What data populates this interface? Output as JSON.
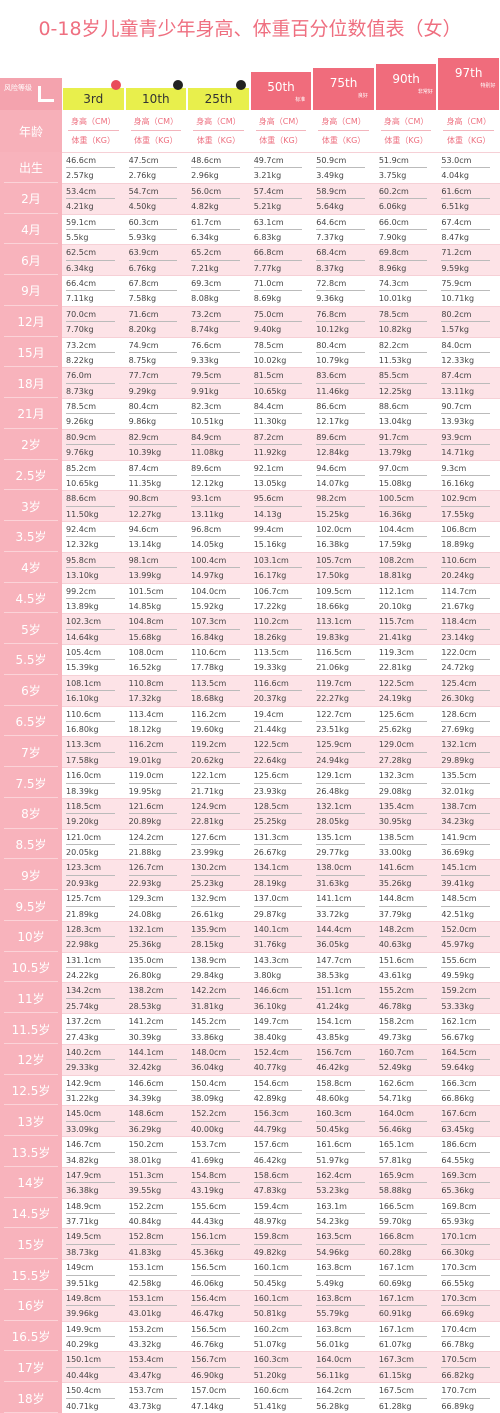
{
  "title": "0-18岁儿童青少年身高、体重百分位数值表（女）",
  "header": {
    "risk_label": "风险等级",
    "columns": [
      {
        "label": "3rd"
      },
      {
        "label": "10th"
      },
      {
        "label": "25th"
      },
      {
        "label": "50th",
        "badge": "标准"
      },
      {
        "label": "75th",
        "badge": "良好"
      },
      {
        "label": "90th",
        "badge": "非常好"
      },
      {
        "label": "97th",
        "badge": "特别好"
      }
    ]
  },
  "table": {
    "age_header": "年龄",
    "height_header": "身高（CM）",
    "weight_header": "体重（KG）",
    "rows": [
      {
        "age": "出生",
        "height": [
          "46.6cm",
          "47.5cm",
          "48.6cm",
          "49.7cm",
          "50.9cm",
          "51.9cm",
          "53.0cm"
        ],
        "weight": [
          "2.57kg",
          "2.76kg",
          "2.96kg",
          "3.21kg",
          "3.49kg",
          "3.75kg",
          "4.04kg"
        ]
      },
      {
        "age": "2月",
        "height": [
          "53.4cm",
          "54.7cm",
          "56.0cm",
          "57.4cm",
          "58.9cm",
          "60.2cm",
          "61.6cm"
        ],
        "weight": [
          "4.21kg",
          "4.50kg",
          "4.82kg",
          "5.21kg",
          "5.64kg",
          "6.06kg",
          "6.51kg"
        ]
      },
      {
        "age": "4月",
        "height": [
          "59.1cm",
          "60.3cm",
          "61.7cm",
          "63.1cm",
          "64.6cm",
          "66.0cm",
          "67.4cm"
        ],
        "weight": [
          "5.5kg",
          "5.93kg",
          "6.34kg",
          "6.83kg",
          "7.37kg",
          "7.90kg",
          "8.47kg"
        ]
      },
      {
        "age": "6月",
        "height": [
          "62.5cm",
          "63.9cm",
          "65.2cm",
          "66.8cm",
          "68.4cm",
          "69.8cm",
          "71.2cm"
        ],
        "weight": [
          "6.34kg",
          "6.76kg",
          "7.21kg",
          "7.77kg",
          "8.37kg",
          "8.96kg",
          "9.59kg"
        ]
      },
      {
        "age": "9月",
        "height": [
          "66.4cm",
          "67.8cm",
          "69.3cm",
          "71.0cm",
          "72.8cm",
          "74.3cm",
          "75.9cm"
        ],
        "weight": [
          "7.11kg",
          "7.58kg",
          "8.08kg",
          "8.69kg",
          "9.36kg",
          "10.01kg",
          "10.71kg"
        ]
      },
      {
        "age": "12月",
        "height": [
          "70.0cm",
          "71.6cm",
          "73.2cm",
          "75.0cm",
          "76.8cm",
          "78.5cm",
          "80.2cm"
        ],
        "weight": [
          "7.70kg",
          "8.20kg",
          "8.74kg",
          "9.40kg",
          "10.12kg",
          "10.82kg",
          "1.57kg"
        ]
      },
      {
        "age": "15月",
        "height": [
          "73.2cm",
          "74.9cm",
          "76.6cm",
          "78.5cm",
          "80.4cm",
          "82.2cm",
          "84.0cm"
        ],
        "weight": [
          "8.22kg",
          "8.75kg",
          "9.33kg",
          "10.02kg",
          "10.79kg",
          "11.53kg",
          "12.33kg"
        ]
      },
      {
        "age": "18月",
        "height": [
          "76.0m",
          "77.7cm",
          "79.5cm",
          "81.5cm",
          "83.6cm",
          "85.5cm",
          "87.4cm"
        ],
        "weight": [
          "8.73kg",
          "9.29kg",
          "9.91kg",
          "10.65kg",
          "11.46kg",
          "12.25kg",
          "13.11kg"
        ]
      },
      {
        "age": "21月",
        "height": [
          "78.5cm",
          "80.4cm",
          "82.3cm",
          "84.4cm",
          "86.6cm",
          "88.6cm",
          "90.7cm"
        ],
        "weight": [
          "9.26kg",
          "9.86kg",
          "10.51kg",
          "11.30kg",
          "12.17kg",
          "13.04kg",
          "13.93kg"
        ]
      },
      {
        "age": "2岁",
        "height": [
          "80.9cm",
          "82.9cm",
          "84.9cm",
          "87.2cm",
          "89.6cm",
          "91.7cm",
          "93.9cm"
        ],
        "weight": [
          "9.76kg",
          "10.39kg",
          "11.08kg",
          "11.92kg",
          "12.84kg",
          "13.79kg",
          "14.71kg"
        ]
      },
      {
        "age": "2.5岁",
        "height": [
          "85.2cm",
          "87.4cm",
          "89.6cm",
          "92.1cm",
          "94.6cm",
          "97.0cm",
          "9.3cm"
        ],
        "weight": [
          "10.65kg",
          "11.35kg",
          "12.12kg",
          "13.05kg",
          "14.07kg",
          "15.08kg",
          "16.16kg"
        ]
      },
      {
        "age": "3岁",
        "height": [
          "88.6cm",
          "90.8cm",
          "93.1cm",
          "95.6cm",
          "98.2cm",
          "100.5cm",
          "102.9cm"
        ],
        "weight": [
          "11.50kg",
          "12.27kg",
          "13.11kg",
          "14.13g",
          "15.25kg",
          "16.36kg",
          "17.55kg"
        ]
      },
      {
        "age": "3.5岁",
        "height": [
          "92.4cm",
          "94.6cm",
          "96.8cm",
          "99.4cm",
          "102.0cm",
          "104.4cm",
          "106.8cm"
        ],
        "weight": [
          "12.32kg",
          "13.14kg",
          "14.05kg",
          "15.16kg",
          "16.38kg",
          "17.59kg",
          "18.89kg"
        ]
      },
      {
        "age": "4岁",
        "height": [
          "95.8cm",
          "98.1cm",
          "100.4cm",
          "103.1cm",
          "105.7cm",
          "108.2cm",
          "110.6cm"
        ],
        "weight": [
          "13.10kg",
          "13.99kg",
          "14.97kg",
          "16.17kg",
          "17.50kg",
          "18.81kg",
          "20.24kg"
        ]
      },
      {
        "age": "4.5岁",
        "height": [
          "99.2cm",
          "101.5cm",
          "104.0cm",
          "106.7cm",
          "109.5cm",
          "112.1cm",
          "114.7cm"
        ],
        "weight": [
          "13.89kg",
          "14.85kg",
          "15.92kg",
          "17.22kg",
          "18.66kg",
          "20.10kg",
          "21.67kg"
        ]
      },
      {
        "age": "5岁",
        "height": [
          "102.3cm",
          "104.8cm",
          "107.3cm",
          "110.2cm",
          "113.1cm",
          "115.7cm",
          "118.4cm"
        ],
        "weight": [
          "14.64kg",
          "15.68kg",
          "16.84kg",
          "18.26kg",
          "19.83kg",
          "21.41kg",
          "23.14kg"
        ]
      },
      {
        "age": "5.5岁",
        "height": [
          "105.4cm",
          "108.0cm",
          "110.6cm",
          "113.5cm",
          "116.5cm",
          "119.3cm",
          "122.0cm"
        ],
        "weight": [
          "15.39kg",
          "16.52kg",
          "17.78kg",
          "19.33kg",
          "21.06kg",
          "22.81kg",
          "24.72kg"
        ]
      },
      {
        "age": "6岁",
        "height": [
          "108.1cm",
          "110.8cm",
          "113.5cm",
          "116.6cm",
          "119.7cm",
          "122.5cm",
          "125.4cm"
        ],
        "weight": [
          "16.10kg",
          "17.32kg",
          "18.68kg",
          "20.37kg",
          "22.27kg",
          "24.19kg",
          "26.30kg"
        ]
      },
      {
        "age": "6.5岁",
        "height": [
          "110.6cm",
          "113.4cm",
          "116.2cm",
          "19.4cm",
          "122.7cm",
          "125.6cm",
          "128.6cm"
        ],
        "weight": [
          "16.80kg",
          "18.12kg",
          "19.60kg",
          "21.44kg",
          "23.51kg",
          "25.62kg",
          "27.69kg"
        ]
      },
      {
        "age": "7岁",
        "height": [
          "113.3cm",
          "116.2cm",
          "119.2cm",
          "122.5cm",
          "125.9cm",
          "129.0cm",
          "132.1cm"
        ],
        "weight": [
          "17.58kg",
          "19.01kg",
          "20.62kg",
          "22.64kg",
          "24.94kg",
          "27.28kg",
          "29.89kg"
        ]
      },
      {
        "age": "7.5岁",
        "height": [
          "116.0cm",
          "119.0cm",
          "122.1cm",
          "125.6cm",
          "129.1cm",
          "132.3cm",
          "135.5cm"
        ],
        "weight": [
          "18.39kg",
          "19.95kg",
          "21.71kg",
          "23.93kg",
          "26.48kg",
          "29.08kg",
          "32.01kg"
        ]
      },
      {
        "age": "8岁",
        "height": [
          "118.5cm",
          "121.6cm",
          "124.9cm",
          "128.5cm",
          "132.1cm",
          "135.4cm",
          "138.7cm"
        ],
        "weight": [
          "19.20kg",
          "20.89kg",
          "22.81kg",
          "25.25kg",
          "28.05kg",
          "30.95kg",
          "34.23kg"
        ]
      },
      {
        "age": "8.5岁",
        "height": [
          "121.0cm",
          "124.2cm",
          "127.6cm",
          "131.3cm",
          "135.1cm",
          "138.5cm",
          "141.9cm"
        ],
        "weight": [
          "20.05kg",
          "21.88kg",
          "23.99kg",
          "26.67kg",
          "29.77kg",
          "33.00kg",
          "36.69kg"
        ]
      },
      {
        "age": "9岁",
        "height": [
          "123.3cm",
          "126.7cm",
          "130.2cm",
          "134.1cm",
          "138.0cm",
          "141.6cm",
          "145.1cm"
        ],
        "weight": [
          "20.93kg",
          "22.93kg",
          "25.23kg",
          "28.19kg",
          "31.63kg",
          "35.26kg",
          "39.41kg"
        ]
      },
      {
        "age": "9.5岁",
        "height": [
          "125.7cm",
          "129.3cm",
          "132.9cm",
          "137.0cm",
          "141.1cm",
          "144.8cm",
          "148.5cm"
        ],
        "weight": [
          "21.89kg",
          "24.08kg",
          "26.61kg",
          "29.87kg",
          "33.72kg",
          "37.79kg",
          "42.51kg"
        ]
      },
      {
        "age": "10岁",
        "height": [
          "128.3cm",
          "132.1cm",
          "135.9cm",
          "140.1cm",
          "144.4cm",
          "148.2cm",
          "152.0cm"
        ],
        "weight": [
          "22.98kg",
          "25.36kg",
          "28.15kg",
          "31.76kg",
          "36.05kg",
          "40.63kg",
          "45.97kg"
        ]
      },
      {
        "age": "10.5岁",
        "height": [
          "131.1cm",
          "135.0cm",
          "138.9cm",
          "143.3cm",
          "147.7cm",
          "151.6cm",
          "155.6cm"
        ],
        "weight": [
          "24.22kg",
          "26.80kg",
          "29.84kg",
          "3.80kg",
          "38.53kg",
          "43.61kg",
          "49.59kg"
        ]
      },
      {
        "age": "11岁",
        "height": [
          "134.2cm",
          "138.2cm",
          "142.2cm",
          "146.6cm",
          "151.1cm",
          "155.2cm",
          "159.2cm"
        ],
        "weight": [
          "25.74kg",
          "28.53kg",
          "31.81kg",
          "36.10kg",
          "41.24kg",
          "46.78kg",
          "53.33kg"
        ]
      },
      {
        "age": "11.5岁",
        "height": [
          "137.2cm",
          "141.2cm",
          "145.2cm",
          "149.7cm",
          "154.1cm",
          "158.2cm",
          "162.1cm"
        ],
        "weight": [
          "27.43kg",
          "30.39kg",
          "33.86kg",
          "38.40kg",
          "43.85kg",
          "49.73kg",
          "56.67kg"
        ]
      },
      {
        "age": "12岁",
        "height": [
          "140.2cm",
          "144.1cm",
          "148.0cm",
          "152.4cm",
          "156.7cm",
          "160.7cm",
          "164.5cm"
        ],
        "weight": [
          "29.33kg",
          "32.42kg",
          "36.04kg",
          "40.77kg",
          "46.42kg",
          "52.49kg",
          "59.64kg"
        ]
      },
      {
        "age": "12.5岁",
        "height": [
          "142.9cm",
          "146.6cm",
          "150.4cm",
          "154.6cm",
          "158.8cm",
          "162.6cm",
          "166.3cm"
        ],
        "weight": [
          "31.22kg",
          "34.39kg",
          "38.09kg",
          "42.89kg",
          "48.60kg",
          "54.71kg",
          "66.86kg"
        ]
      },
      {
        "age": "13岁",
        "height": [
          "145.0cm",
          "148.6cm",
          "152.2cm",
          "156.3cm",
          "160.3cm",
          "164.0cm",
          "167.6cm"
        ],
        "weight": [
          "33.09kg",
          "36.29kg",
          "40.00kg",
          "44.79kg",
          "50.45kg",
          "56.46kg",
          "63.45kg"
        ]
      },
      {
        "age": "13.5岁",
        "height": [
          "146.7cm",
          "150.2cm",
          "153.7cm",
          "157.6cm",
          "161.6cm",
          "165.1cm",
          "186.6cm"
        ],
        "weight": [
          "34.82kg",
          "38.01kg",
          "41.69kg",
          "46.42kg",
          "51.97kg",
          "57.81kg",
          "64.55kg"
        ]
      },
      {
        "age": "14岁",
        "height": [
          "147.9cm",
          "151.3cm",
          "154.8cm",
          "158.6cm",
          "162.4cm",
          "165.9cm",
          "169.3cm"
        ],
        "weight": [
          "36.38kg",
          "39.55kg",
          "43.19kg",
          "47.83kg",
          "53.23kg",
          "58.88kg",
          "65.36kg"
        ]
      },
      {
        "age": "14.5岁",
        "height": [
          "148.9cm",
          "152.2cm",
          "155.6cm",
          "159.4cm",
          "163.1m",
          "166.5cm",
          "169.8cm"
        ],
        "weight": [
          "37.71kg",
          "40.84kg",
          "44.43kg",
          "48.97kg",
          "54.23kg",
          "59.70kg",
          "65.93kg"
        ]
      },
      {
        "age": "15岁",
        "height": [
          "149.5cm",
          "152.8cm",
          "156.1cm",
          "159.8cm",
          "163.5cm",
          "166.8cm",
          "170.1cm"
        ],
        "weight": [
          "38.73kg",
          "41.83kg",
          "45.36kg",
          "49.82kg",
          "54.96kg",
          "60.28kg",
          "66.30kg"
        ]
      },
      {
        "age": "15.5岁",
        "height": [
          "149cm",
          "153.1cm",
          "156.5cm",
          "160.1cm",
          "163.8cm",
          "167.1cm",
          "170.3cm"
        ],
        "weight": [
          "39.51kg",
          "42.58kg",
          "46.06kg",
          "50.45kg",
          "5.49kg",
          "60.69kg",
          "66.55kg"
        ]
      },
      {
        "age": "16岁",
        "height": [
          "149.8cm",
          "153.1cm",
          "156.4cm",
          "160.1cm",
          "163.8cm",
          "167.1cm",
          "170.3cm"
        ],
        "weight": [
          "39.96kg",
          "43.01kg",
          "46.47kg",
          "50.81kg",
          "55.79kg",
          "60.91kg",
          "66.69kg"
        ]
      },
      {
        "age": "16.5岁",
        "height": [
          "149.9cm",
          "153.2cm",
          "156.5cm",
          "160.2cm",
          "163.8cm",
          "167.1cm",
          "170.4cm"
        ],
        "weight": [
          "40.29kg",
          "43.32kg",
          "46.76kg",
          "51.07kg",
          "56.01kg",
          "61.07kg",
          "66.78kg"
        ]
      },
      {
        "age": "17岁",
        "height": [
          "150.1cm",
          "153.4cm",
          "156.7cm",
          "160.3cm",
          "164.0cm",
          "167.3cm",
          "170.5cm"
        ],
        "weight": [
          "40.44kg",
          "43.47kg",
          "46.90kg",
          "51.20kg",
          "56.11kg",
          "61.15kg",
          "66.82kg"
        ]
      },
      {
        "age": "18岁",
        "height": [
          "150.4cm",
          "153.7cm",
          "157.0cm",
          "160.6cm",
          "164.2cm",
          "167.5cm",
          "170.7cm"
        ],
        "weight": [
          "40.71kg",
          "43.73kg",
          "47.14kg",
          "51.41kg",
          "56.28kg",
          "61.28kg",
          "66.89kg"
        ]
      }
    ]
  }
}
